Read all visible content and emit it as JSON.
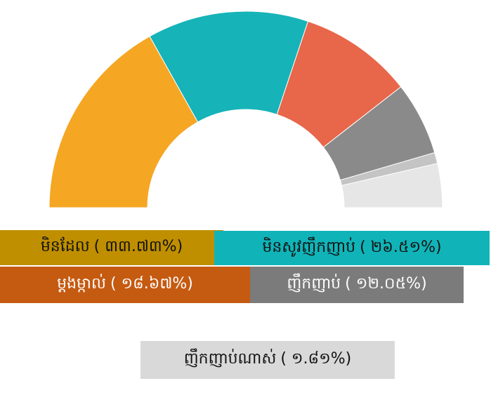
{
  "chart_data": {
    "type": "half-donut",
    "categories": [
      "មិនដែល",
      "មិនសូវញឹកញាប់",
      "ម្តងម្កាល់",
      "ញឹកញាប់",
      "ញឹកញាប់ណាស់",
      null
    ],
    "values": [
      33.73,
      26.51,
      18.67,
      12.05,
      1.81,
      7.23
    ],
    "value_labels": [
      "( ៣៣.៧៣%)",
      "( ២៦.៥១%)",
      "( ១៨.៦៧%)",
      "( ១២.០៥%)",
      "( ១.៨១%)",
      null
    ],
    "colors": [
      "#f5a623",
      "#16b3b8",
      "#e8664a",
      "#8a8a8a",
      "#c4c4c4",
      "#e6e6e6"
    ],
    "legend_colors": [
      "#bf8f00",
      "#10b4b8",
      "#c55a11",
      "#7b7b7b",
      "#d9d9d9"
    ],
    "legend_text_colors": [
      "#111111",
      "#111111",
      "#ffffff",
      "#ffffff",
      "#111111"
    ]
  }
}
